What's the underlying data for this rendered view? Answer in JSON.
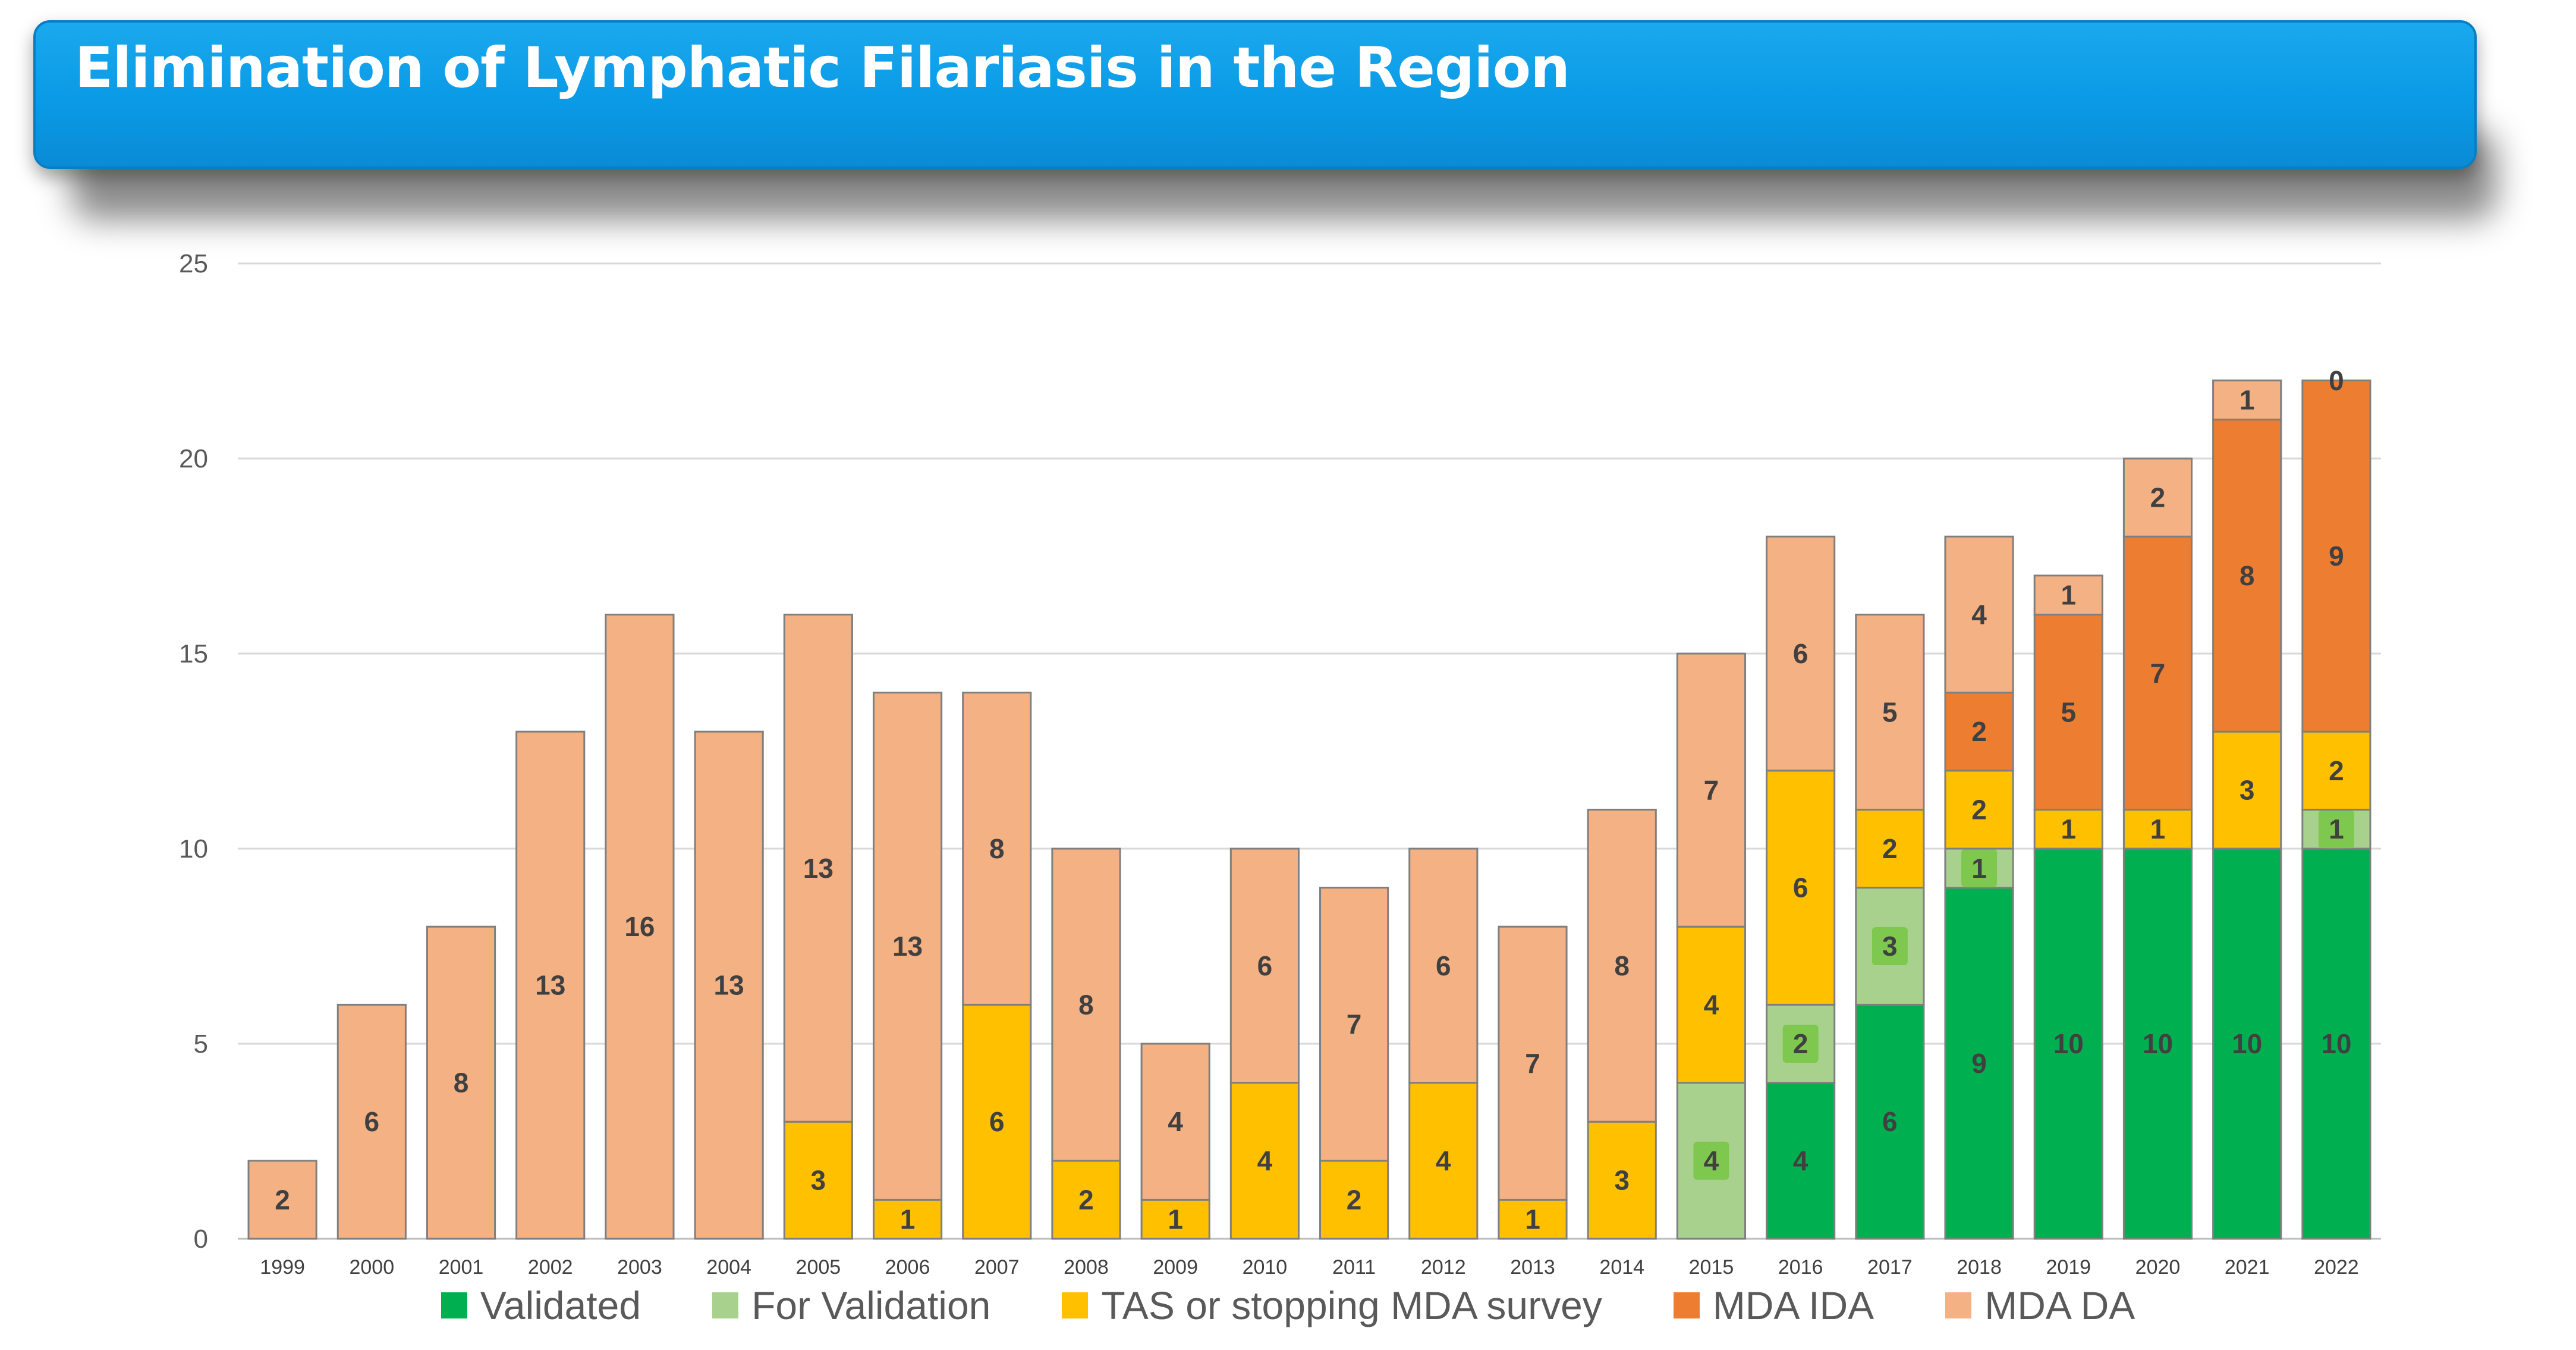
{
  "header": {
    "title": "Elimination of Lymphatic Filariasis in the Region"
  },
  "chart_data": {
    "type": "bar",
    "stacked": true,
    "title": "",
    "xlabel": "",
    "ylabel": "",
    "ylim": [
      0,
      25
    ],
    "yticks": [
      0,
      5,
      10,
      15,
      20,
      25
    ],
    "grid": true,
    "legend_position": "bottom",
    "categories": [
      "1999",
      "2000",
      "2001",
      "2002",
      "2003",
      "2004",
      "2005",
      "2006",
      "2007",
      "2008",
      "2009",
      "2010",
      "2011",
      "2012",
      "2013",
      "2014",
      "2015",
      "2016",
      "2017",
      "2018",
      "2019",
      "2020",
      "2021",
      "2022"
    ],
    "series": [
      {
        "name": "Validated",
        "color": "#00b050",
        "values": [
          0,
          0,
          0,
          0,
          0,
          0,
          0,
          0,
          0,
          0,
          0,
          0,
          0,
          0,
          0,
          0,
          0,
          4,
          6,
          9,
          10,
          10,
          10,
          10
        ]
      },
      {
        "name": "For Validation",
        "color": "#a9d18e",
        "values": [
          0,
          0,
          0,
          0,
          0,
          0,
          0,
          0,
          0,
          0,
          0,
          0,
          0,
          0,
          0,
          0,
          4,
          2,
          3,
          1,
          0,
          0,
          0,
          1
        ]
      },
      {
        "name": "TAS or stopping MDA survey",
        "color": "#ffc000",
        "values": [
          0,
          0,
          0,
          0,
          0,
          0,
          3,
          1,
          6,
          2,
          1,
          4,
          2,
          4,
          1,
          3,
          4,
          6,
          2,
          2,
          1,
          1,
          3,
          2
        ]
      },
      {
        "name": "MDA IDA",
        "color": "#ed7d31",
        "values": [
          0,
          0,
          0,
          0,
          0,
          0,
          0,
          0,
          0,
          0,
          0,
          0,
          0,
          0,
          0,
          0,
          0,
          0,
          0,
          2,
          5,
          7,
          8,
          9
        ]
      },
      {
        "name": "MDA DA",
        "color": "#f4b183",
        "values": [
          2,
          6,
          8,
          13,
          16,
          13,
          13,
          13,
          8,
          8,
          4,
          6,
          7,
          6,
          7,
          8,
          7,
          6,
          5,
          4,
          1,
          2,
          1,
          0
        ]
      }
    ],
    "highlighted_labels": {
      "color": "#7ec850",
      "series": "For Validation"
    },
    "zero_labels_shown": [
      {
        "category": "2022",
        "series": "MDA DA"
      }
    ]
  }
}
